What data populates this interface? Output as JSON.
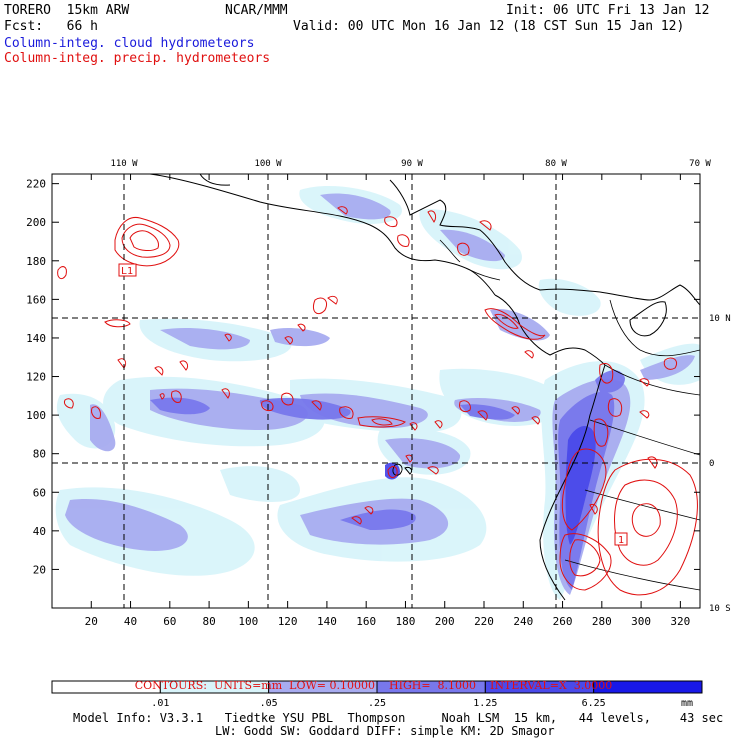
{
  "header": {
    "model": "TORERO  15km ARW",
    "org": "NCAR/MMM",
    "init": "Init: 06 UTC Fri 13 Jan 12",
    "fcst": "Fcst:   66 h",
    "valid": "Valid: 00 UTC Mon 16 Jan 12 (18 CST Sun 15 Jan 12)",
    "field1": "Column-integ. cloud hydrometeors",
    "field2": "Column-integ. precip. hydrometeors"
  },
  "axes": {
    "x_ticks": [
      "20",
      "40",
      "60",
      "80",
      "100",
      "120",
      "140",
      "160",
      "180",
      "200",
      "220",
      "240",
      "260",
      "280",
      "300",
      "320"
    ],
    "y_ticks": [
      "20",
      "40",
      "60",
      "80",
      "100",
      "120",
      "140",
      "160",
      "180",
      "200",
      "220"
    ],
    "lon_labels": [
      "110 W",
      "100 W",
      "90 W",
      "80 W",
      "70 W"
    ],
    "lat_labels": [
      "10 N",
      "0",
      "10 S"
    ]
  },
  "markers": {
    "l1_label": "L1",
    "l2_label": "1"
  },
  "contour_info": {
    "contours": "CONTOURS:",
    "units": "UNITS=mm",
    "low": "LOW= 0.10000",
    "high": "HIGH=  8.1000",
    "interval": "INTERVAL=X  3.0000"
  },
  "colorbar": {
    "labels": [
      ".01",
      ".05",
      ".25",
      "1.25",
      "6.25"
    ],
    "unit": "mm",
    "colors": [
      "#ffffff",
      "#d8f4fa",
      "#a8acf0",
      "#7878ec",
      "#4a4aea",
      "#1818e8"
    ]
  },
  "model_info": {
    "line1": "Model Info: V3.3.1   Tiedtke YSU PBL  Thompson     Noah LSM  15 km,   44 levels,    43 sec",
    "line2": "LW: Godd SW: Goddard DIFF: simple KM: 2D Smagor"
  }
}
